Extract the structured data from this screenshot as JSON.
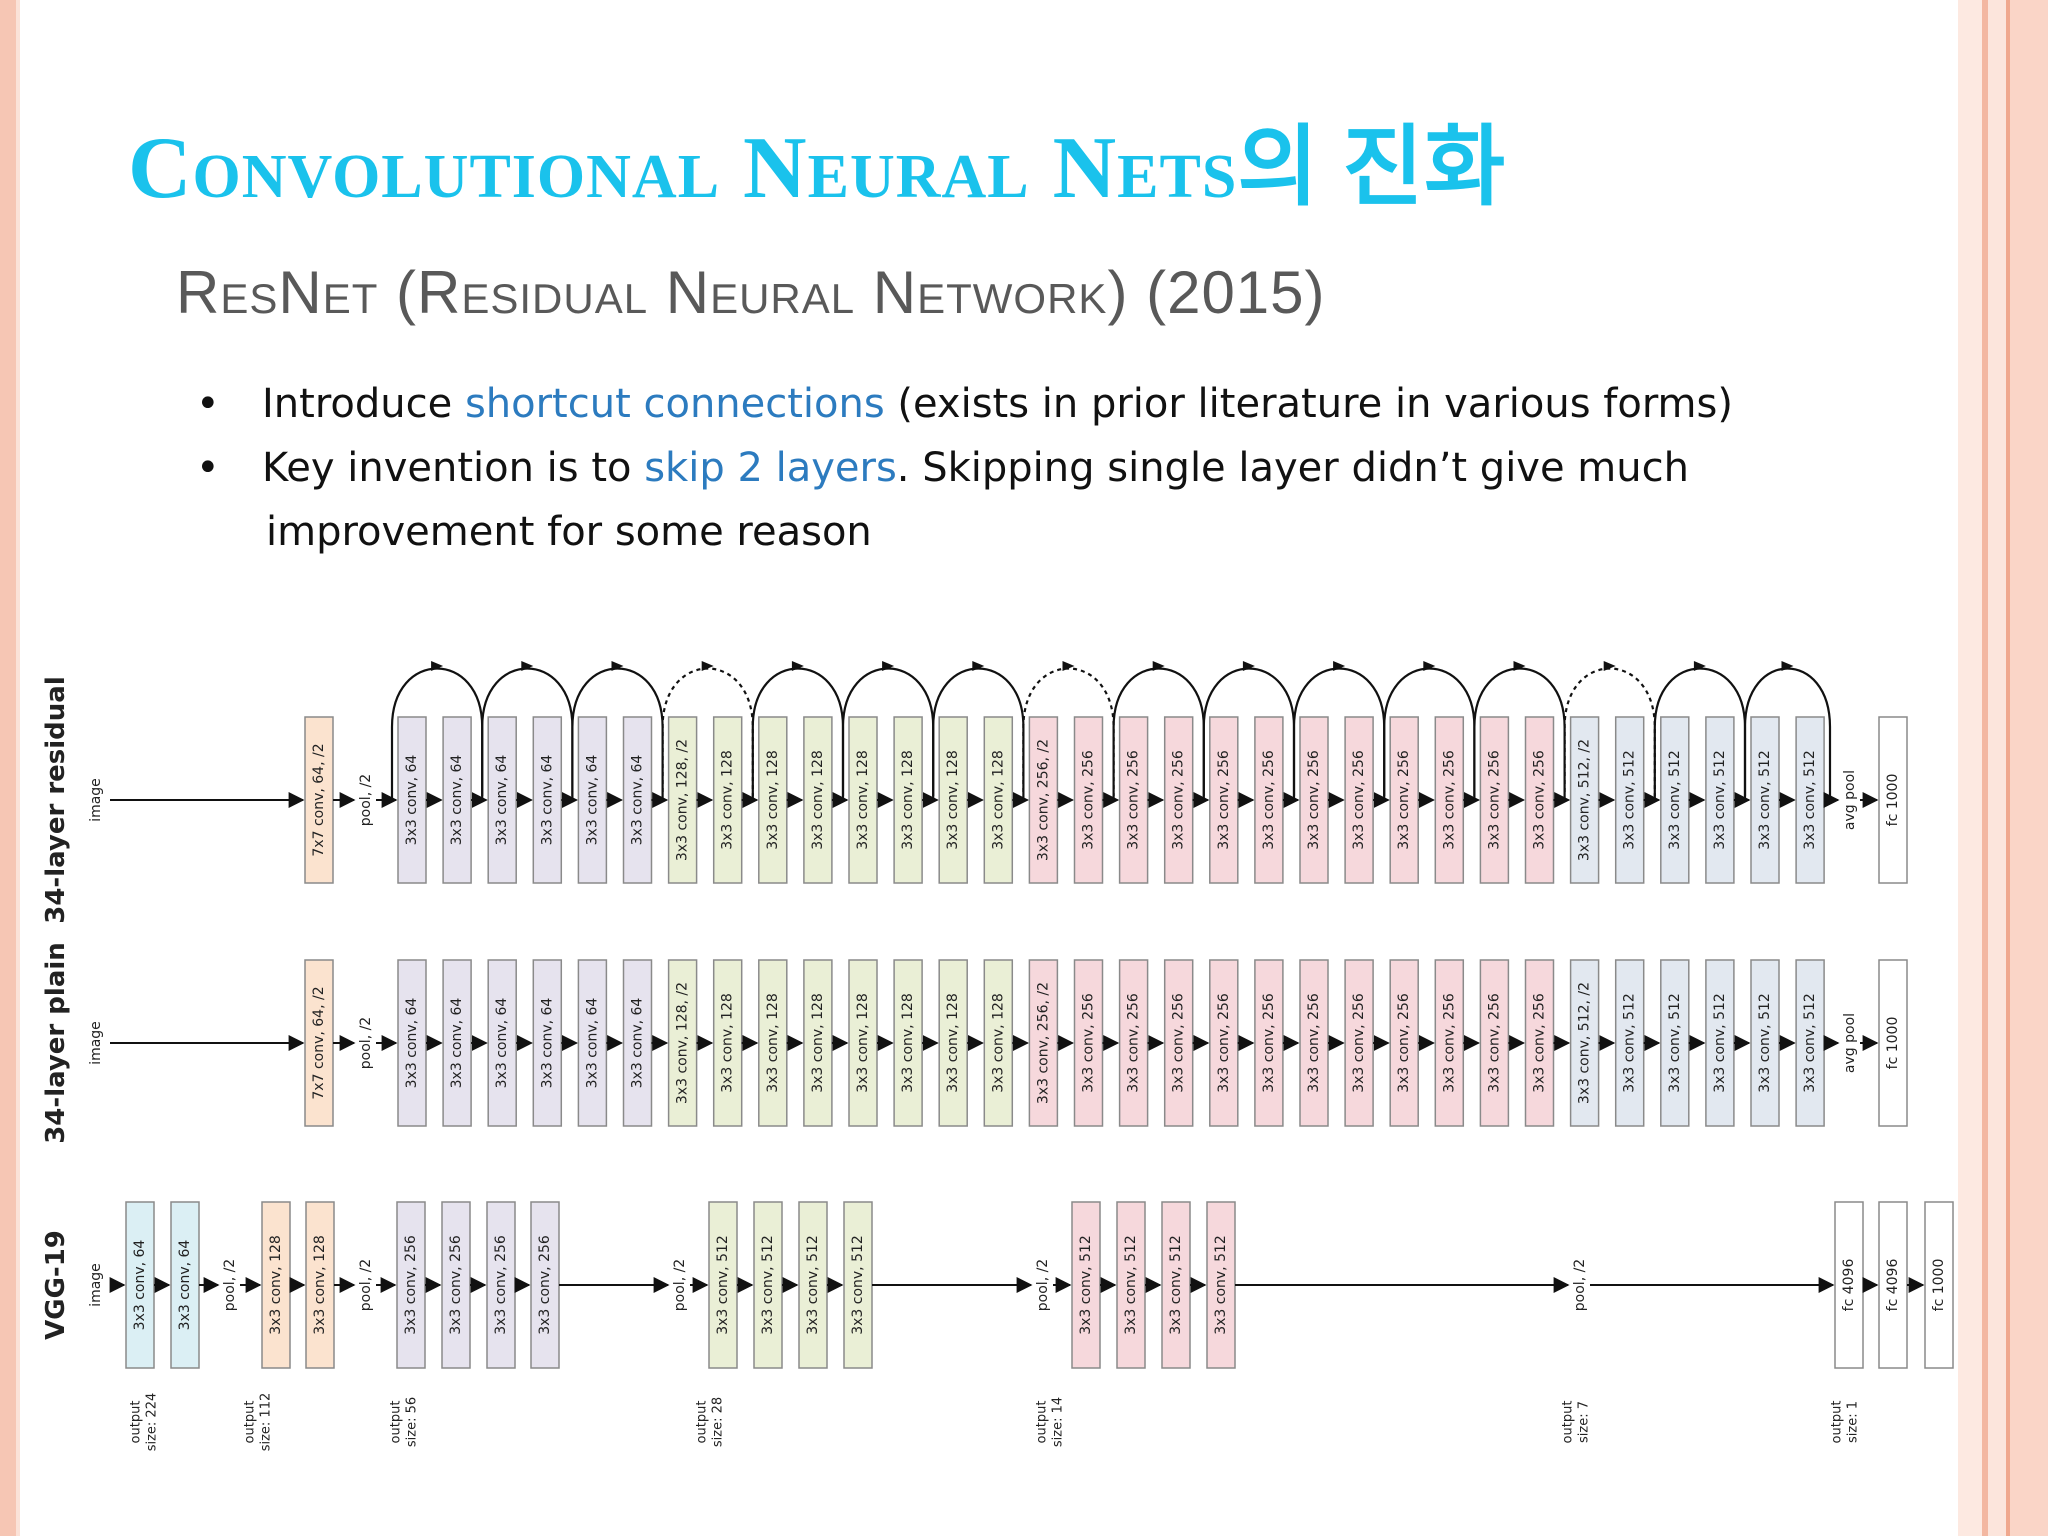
{
  "slide": {
    "title": "Convolutional Neural Nets의 진화",
    "subtitle": "ResNet (Residual Neural Network) (2015)",
    "bullets": [
      {
        "before": "Introduce ",
        "highlight": "shortcut connections",
        "after": "  (exists in prior literature in  various forms)"
      },
      {
        "before": "Key invention is to ",
        "highlight": "skip 2 layers",
        "after": ".  Skipping single layer didn’t give  much"
      }
    ],
    "bullet_continuation": "improvement for some  reason",
    "highlight_color": "#2c7bbf",
    "title_color": "#1ac2ec"
  },
  "diagram": {
    "rows": [
      {
        "name": "34-layer residual",
        "input_label": "image",
        "has_shortcuts": true,
        "blocks": [
          {
            "label": "7x7 conv, 64, /2",
            "color": "orange"
          },
          {
            "label": "pool, /2",
            "color": "none"
          },
          {
            "label": "3x3 conv, 64",
            "color": "purple"
          },
          {
            "label": "3x3 conv, 64",
            "color": "purple"
          },
          {
            "label": "3x3 conv, 64",
            "color": "purple"
          },
          {
            "label": "3x3 conv, 64",
            "color": "purple"
          },
          {
            "label": "3x3 conv, 64",
            "color": "purple"
          },
          {
            "label": "3x3 conv, 64",
            "color": "purple"
          },
          {
            "label": "3x3 conv, 128, /2",
            "color": "green"
          },
          {
            "label": "3x3 conv, 128",
            "color": "green"
          },
          {
            "label": "3x3 conv, 128",
            "color": "green"
          },
          {
            "label": "3x3 conv, 128",
            "color": "green"
          },
          {
            "label": "3x3 conv, 128",
            "color": "green"
          },
          {
            "label": "3x3 conv, 128",
            "color": "green"
          },
          {
            "label": "3x3 conv, 128",
            "color": "green"
          },
          {
            "label": "3x3 conv, 128",
            "color": "green"
          },
          {
            "label": "3x3 conv, 256, /2",
            "color": "pink"
          },
          {
            "label": "3x3 conv, 256",
            "color": "pink"
          },
          {
            "label": "3x3 conv, 256",
            "color": "pink"
          },
          {
            "label": "3x3 conv, 256",
            "color": "pink"
          },
          {
            "label": "3x3 conv, 256",
            "color": "pink"
          },
          {
            "label": "3x3 conv, 256",
            "color": "pink"
          },
          {
            "label": "3x3 conv, 256",
            "color": "pink"
          },
          {
            "label": "3x3 conv, 256",
            "color": "pink"
          },
          {
            "label": "3x3 conv, 256",
            "color": "pink"
          },
          {
            "label": "3x3 conv, 256",
            "color": "pink"
          },
          {
            "label": "3x3 conv, 256",
            "color": "pink"
          },
          {
            "label": "3x3 conv, 256",
            "color": "pink"
          },
          {
            "label": "3x3 conv, 512, /2",
            "color": "blue"
          },
          {
            "label": "3x3 conv, 512",
            "color": "blue"
          },
          {
            "label": "3x3 conv, 512",
            "color": "blue"
          },
          {
            "label": "3x3 conv, 512",
            "color": "blue"
          },
          {
            "label": "3x3 conv, 512",
            "color": "blue"
          },
          {
            "label": "3x3 conv, 512",
            "color": "blue"
          },
          {
            "label": "avg pool",
            "color": "none"
          },
          {
            "label": "fc 1000",
            "color": "white"
          }
        ]
      },
      {
        "name": "34-layer plain",
        "input_label": "image",
        "has_shortcuts": false,
        "blocks": [
          {
            "label": "7x7 conv, 64, /2",
            "color": "orange"
          },
          {
            "label": "pool, /2",
            "color": "none"
          },
          {
            "label": "3x3 conv, 64",
            "color": "purple"
          },
          {
            "label": "3x3 conv, 64",
            "color": "purple"
          },
          {
            "label": "3x3 conv, 64",
            "color": "purple"
          },
          {
            "label": "3x3 conv, 64",
            "color": "purple"
          },
          {
            "label": "3x3 conv, 64",
            "color": "purple"
          },
          {
            "label": "3x3 conv, 64",
            "color": "purple"
          },
          {
            "label": "3x3 conv, 128, /2",
            "color": "green"
          },
          {
            "label": "3x3 conv, 128",
            "color": "green"
          },
          {
            "label": "3x3 conv, 128",
            "color": "green"
          },
          {
            "label": "3x3 conv, 128",
            "color": "green"
          },
          {
            "label": "3x3 conv, 128",
            "color": "green"
          },
          {
            "label": "3x3 conv, 128",
            "color": "green"
          },
          {
            "label": "3x3 conv, 128",
            "color": "green"
          },
          {
            "label": "3x3 conv, 128",
            "color": "green"
          },
          {
            "label": "3x3 conv, 256, /2",
            "color": "pink"
          },
          {
            "label": "3x3 conv, 256",
            "color": "pink"
          },
          {
            "label": "3x3 conv, 256",
            "color": "pink"
          },
          {
            "label": "3x3 conv, 256",
            "color": "pink"
          },
          {
            "label": "3x3 conv, 256",
            "color": "pink"
          },
          {
            "label": "3x3 conv, 256",
            "color": "pink"
          },
          {
            "label": "3x3 conv, 256",
            "color": "pink"
          },
          {
            "label": "3x3 conv, 256",
            "color": "pink"
          },
          {
            "label": "3x3 conv, 256",
            "color": "pink"
          },
          {
            "label": "3x3 conv, 256",
            "color": "pink"
          },
          {
            "label": "3x3 conv, 256",
            "color": "pink"
          },
          {
            "label": "3x3 conv, 256",
            "color": "pink"
          },
          {
            "label": "3x3 conv, 512, /2",
            "color": "blue"
          },
          {
            "label": "3x3 conv, 512",
            "color": "blue"
          },
          {
            "label": "3x3 conv, 512",
            "color": "blue"
          },
          {
            "label": "3x3 conv, 512",
            "color": "blue"
          },
          {
            "label": "3x3 conv, 512",
            "color": "blue"
          },
          {
            "label": "3x3 conv, 512",
            "color": "blue"
          },
          {
            "label": "avg pool",
            "color": "none"
          },
          {
            "label": "fc 1000",
            "color": "white"
          }
        ]
      },
      {
        "name": "VGG-19",
        "input_label": "image",
        "has_shortcuts": false,
        "blocks": [
          {
            "label": "3x3 conv, 64",
            "color": "cyan"
          },
          {
            "label": "3x3 conv, 64",
            "color": "cyan"
          },
          {
            "label": "pool, /2",
            "color": "none"
          },
          {
            "label": "3x3 conv, 128",
            "color": "orange"
          },
          {
            "label": "3x3 conv, 128",
            "color": "orange"
          },
          {
            "label": "pool, /2",
            "color": "none"
          },
          {
            "label": "3x3 conv, 256",
            "color": "purple"
          },
          {
            "label": "3x3 conv, 256",
            "color": "purple"
          },
          {
            "label": "3x3 conv, 256",
            "color": "purple"
          },
          {
            "label": "3x3 conv, 256",
            "color": "purple"
          },
          {
            "label": "pool, /2",
            "color": "none"
          },
          {
            "label": "3x3 conv, 512",
            "color": "green"
          },
          {
            "label": "3x3 conv, 512",
            "color": "green"
          },
          {
            "label": "3x3 conv, 512",
            "color": "green"
          },
          {
            "label": "3x3 conv, 512",
            "color": "green"
          },
          {
            "label": "pool, /2",
            "color": "none"
          },
          {
            "label": "3x3 conv, 512",
            "color": "pink"
          },
          {
            "label": "3x3 conv, 512",
            "color": "pink"
          },
          {
            "label": "3x3 conv, 512",
            "color": "pink"
          },
          {
            "label": "3x3 conv, 512",
            "color": "pink"
          },
          {
            "label": "pool, /2",
            "color": "none"
          },
          {
            "label": "fc 4096",
            "color": "white"
          },
          {
            "label": "fc 4096",
            "color": "white"
          },
          {
            "label": "fc 1000",
            "color": "white"
          }
        ]
      }
    ],
    "output_sizes": [
      "output size: 224",
      "output size: 112",
      "output size: 56",
      "output size: 28",
      "output size: 14",
      "output size: 7",
      "output size: 1"
    ],
    "colors": {
      "orange": "#fbe3cf",
      "purple": "#e6e3ee",
      "green": "#eaefd6",
      "pink": "#f6d8dc",
      "blue": "#e2e8f0",
      "cyan": "#dbeff4",
      "white": "#ffffff",
      "stroke": "#8a8a8a"
    }
  }
}
